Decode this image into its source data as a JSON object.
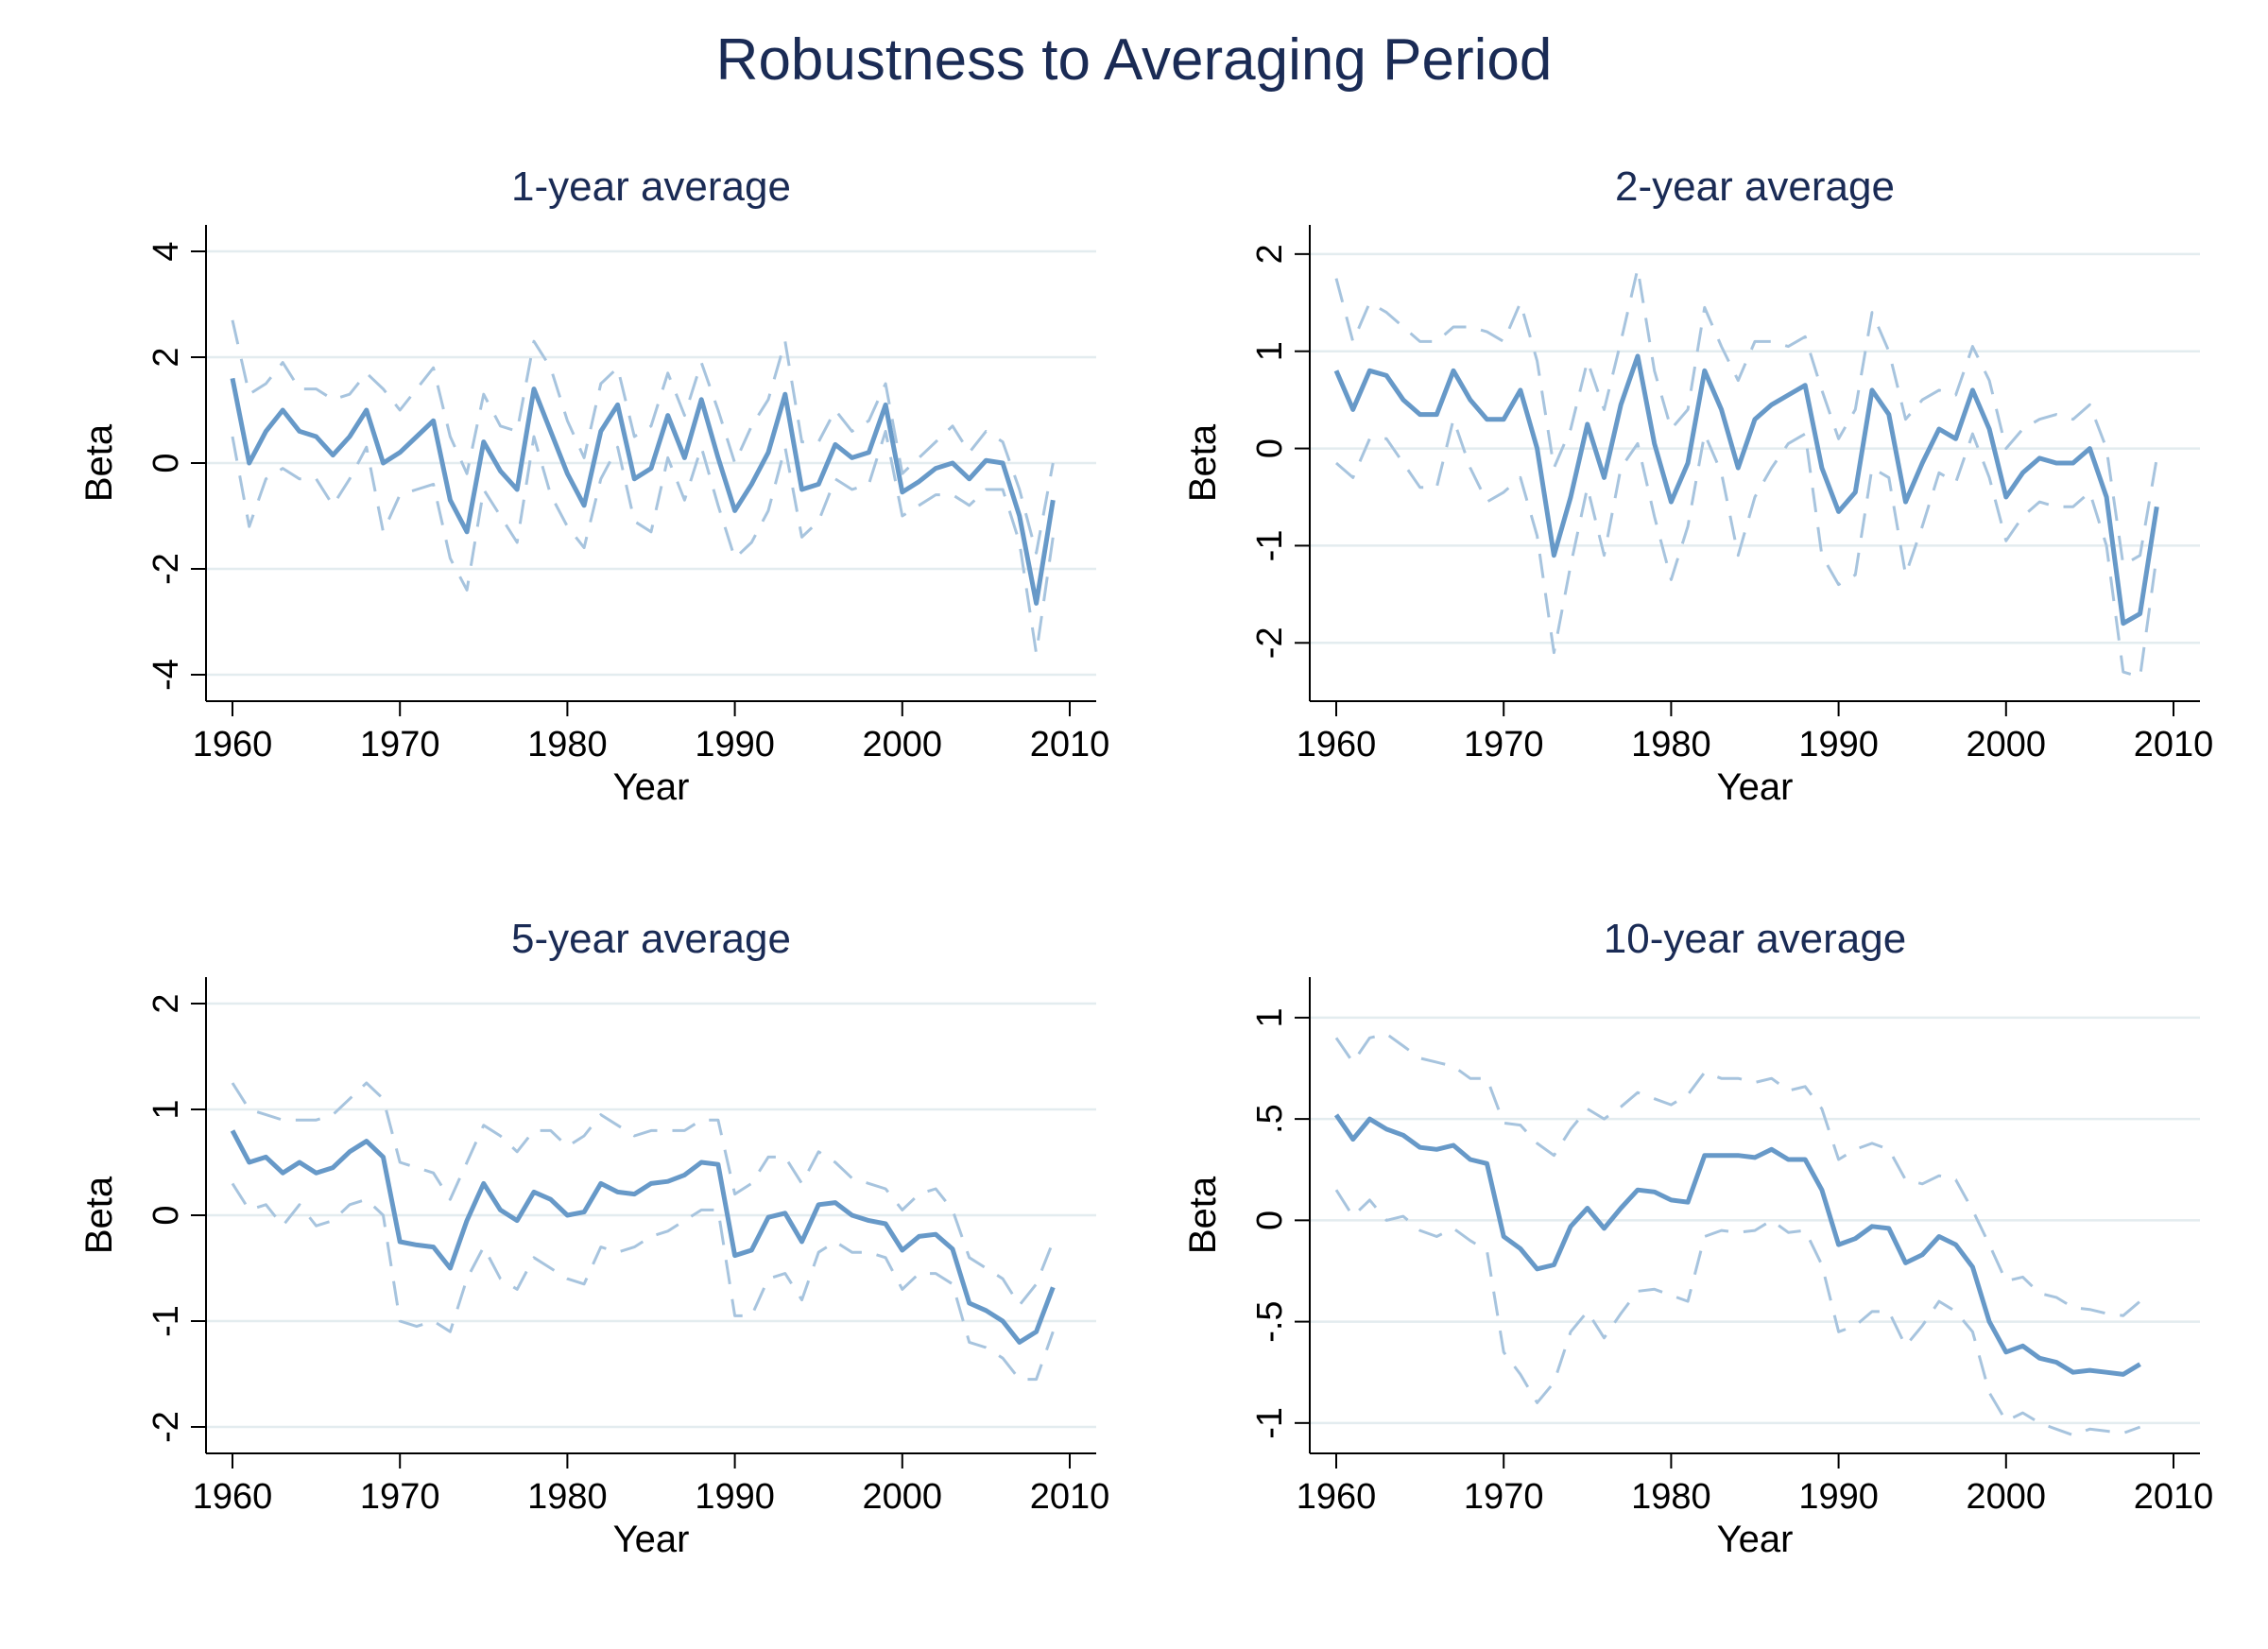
{
  "title": "Robustness to Averaging Period",
  "colors": {
    "estimate": "#6799c8",
    "band": "#a7c4de",
    "grid": "#e3ecef",
    "axis": "#000000",
    "title": "#1a2b55"
  },
  "chart_data": [
    {
      "type": "line",
      "title": "1-year average",
      "xlabel": "Year",
      "ylabel": "Beta",
      "xlim": [
        1960,
        2010
      ],
      "ylim": [
        -4.5,
        4.5
      ],
      "xticks": [
        1960,
        1970,
        1980,
        1990,
        2000,
        2010
      ],
      "xtick_labels": [
        "1960",
        "1970",
        "1980",
        "1990",
        "2000",
        "2010"
      ],
      "yticks": [
        -4,
        -2,
        0,
        2,
        4
      ],
      "ytick_labels": [
        "-4",
        "-2",
        "0",
        "2",
        "4"
      ],
      "grid": true,
      "legend": "none",
      "x": [
        1960,
        1961,
        1962,
        1963,
        1964,
        1965,
        1966,
        1967,
        1968,
        1969,
        1970,
        1971,
        1972,
        1973,
        1974,
        1975,
        1976,
        1977,
        1978,
        1979,
        1980,
        1981,
        1982,
        1983,
        1984,
        1985,
        1986,
        1987,
        1988,
        1989,
        1990,
        1991,
        1992,
        1993,
        1994,
        1995,
        1996,
        1997,
        1998,
        1999,
        2000,
        2001,
        2002,
        2003,
        2004,
        2005,
        2006,
        2007,
        2008,
        2009
      ],
      "series": [
        {
          "role": "estimate",
          "values": [
            1.6,
            0.0,
            0.6,
            1.0,
            0.6,
            0.5,
            0.15,
            0.5,
            1.0,
            0.0,
            0.2,
            0.5,
            0.8,
            -0.7,
            -1.3,
            0.4,
            -0.15,
            -0.5,
            1.4,
            0.6,
            -0.2,
            -0.8,
            0.6,
            1.1,
            -0.3,
            -0.1,
            0.9,
            0.1,
            1.2,
            0.1,
            -0.9,
            -0.4,
            0.2,
            1.3,
            -0.5,
            -0.4,
            0.35,
            0.1,
            0.2,
            1.1,
            -0.55,
            -0.35,
            -0.1,
            0.0,
            -0.3,
            0.05,
            0.0,
            -1.0,
            -2.65,
            -0.7
          ]
        },
        {
          "role": "upper",
          "values": [
            2.7,
            1.3,
            1.5,
            1.9,
            1.4,
            1.4,
            1.2,
            1.3,
            1.7,
            1.4,
            1.0,
            1.4,
            1.8,
            0.5,
            -0.2,
            1.3,
            0.7,
            0.6,
            2.3,
            1.8,
            0.8,
            0.1,
            1.5,
            1.8,
            0.5,
            0.7,
            1.7,
            0.9,
            1.9,
            1.0,
            0.0,
            0.7,
            1.2,
            2.3,
            0.4,
            0.4,
            1.0,
            0.6,
            0.8,
            1.5,
            -0.2,
            0.1,
            0.4,
            0.7,
            0.2,
            0.6,
            0.4,
            -0.5,
            -1.7,
            0.0
          ]
        },
        {
          "role": "lower",
          "values": [
            0.5,
            -1.2,
            -0.3,
            -0.1,
            -0.3,
            -0.3,
            -0.8,
            -0.3,
            0.3,
            -1.3,
            -0.6,
            -0.5,
            -0.4,
            -1.8,
            -2.4,
            -0.5,
            -1.0,
            -1.5,
            0.5,
            -0.6,
            -1.2,
            -1.6,
            -0.3,
            0.3,
            -1.1,
            -1.3,
            0.1,
            -0.7,
            0.3,
            -0.8,
            -1.8,
            -1.5,
            -0.9,
            0.3,
            -1.4,
            -1.1,
            -0.3,
            -0.5,
            -0.4,
            0.6,
            -1.0,
            -0.8,
            -0.6,
            -0.6,
            -0.8,
            -0.5,
            -0.5,
            -1.5,
            -3.6,
            -1.4
          ]
        }
      ]
    },
    {
      "type": "line",
      "title": "2-year average",
      "xlabel": "Year",
      "ylabel": "Beta",
      "xlim": [
        1960,
        2010
      ],
      "ylim": [
        -2.6,
        2.3
      ],
      "xticks": [
        1960,
        1970,
        1980,
        1990,
        2000,
        2010
      ],
      "xtick_labels": [
        "1960",
        "1970",
        "1980",
        "1990",
        "2000",
        "2010"
      ],
      "yticks": [
        -2,
        -1,
        0,
        1,
        2
      ],
      "ytick_labels": [
        "-2",
        "-1",
        "0",
        "1",
        "2"
      ],
      "grid": true,
      "legend": "none",
      "x": [
        1960,
        1961,
        1962,
        1963,
        1964,
        1965,
        1966,
        1967,
        1968,
        1969,
        1970,
        1971,
        1972,
        1973,
        1974,
        1975,
        1976,
        1977,
        1978,
        1979,
        1980,
        1981,
        1982,
        1983,
        1984,
        1985,
        1986,
        1987,
        1988,
        1989,
        1990,
        1991,
        1992,
        1993,
        1994,
        1995,
        1996,
        1997,
        1998,
        1999,
        2000,
        2001,
        2002,
        2003,
        2004,
        2005,
        2006,
        2007,
        2008,
        2009
      ],
      "series": [
        {
          "role": "estimate",
          "values": [
            0.8,
            0.4,
            0.8,
            0.75,
            0.5,
            0.35,
            0.35,
            0.8,
            0.5,
            0.3,
            0.3,
            0.6,
            0.0,
            -1.1,
            -0.5,
            0.25,
            -0.3,
            0.45,
            0.95,
            0.05,
            -0.55,
            -0.15,
            0.8,
            0.4,
            -0.2,
            0.3,
            0.45,
            0.55,
            0.65,
            -0.2,
            -0.65,
            -0.45,
            0.6,
            0.35,
            -0.55,
            -0.15,
            0.2,
            0.1,
            0.6,
            0.2,
            -0.5,
            -0.25,
            -0.1,
            -0.15,
            -0.15,
            0.0,
            -0.5,
            -1.8,
            -1.7,
            -0.6
          ]
        },
        {
          "role": "upper",
          "values": [
            1.75,
            1.1,
            1.5,
            1.4,
            1.25,
            1.1,
            1.1,
            1.25,
            1.25,
            1.2,
            1.1,
            1.5,
            0.9,
            -0.2,
            0.2,
            0.9,
            0.4,
            1.1,
            1.85,
            0.8,
            0.2,
            0.4,
            1.45,
            1.05,
            0.7,
            1.1,
            1.1,
            1.05,
            1.15,
            0.6,
            0.1,
            0.4,
            1.4,
            1.0,
            0.3,
            0.5,
            0.6,
            0.55,
            1.05,
            0.7,
            0.0,
            0.2,
            0.3,
            0.35,
            0.3,
            0.45,
            0.0,
            -1.2,
            -1.1,
            -0.1
          ]
        },
        {
          "role": "lower",
          "values": [
            -0.15,
            -0.3,
            0.1,
            0.1,
            -0.15,
            -0.4,
            -0.4,
            0.3,
            -0.2,
            -0.55,
            -0.45,
            -0.3,
            -0.9,
            -2.1,
            -1.2,
            -0.4,
            -1.1,
            -0.2,
            0.05,
            -0.7,
            -1.35,
            -0.8,
            0.15,
            -0.25,
            -1.1,
            -0.5,
            -0.2,
            0.05,
            0.15,
            -1.1,
            -1.4,
            -1.3,
            -0.2,
            -0.3,
            -1.3,
            -0.8,
            -0.25,
            -0.35,
            0.15,
            -0.3,
            -0.95,
            -0.7,
            -0.55,
            -0.6,
            -0.6,
            -0.45,
            -1.0,
            -2.3,
            -2.35,
            -1.1
          ]
        }
      ]
    },
    {
      "type": "line",
      "title": "5-year average",
      "xlabel": "Year",
      "ylabel": "Beta",
      "xlim": [
        1960,
        2010
      ],
      "ylim": [
        -2.25,
        2.25
      ],
      "xticks": [
        1960,
        1970,
        1980,
        1990,
        2000,
        2010
      ],
      "xtick_labels": [
        "1960",
        "1970",
        "1980",
        "1990",
        "2000",
        "2010"
      ],
      "yticks": [
        -2,
        -1,
        0,
        1,
        2
      ],
      "ytick_labels": [
        "-2",
        "-1",
        "0",
        "1",
        "2"
      ],
      "grid": true,
      "legend": "none",
      "x": [
        1960,
        1961,
        1962,
        1963,
        1964,
        1965,
        1966,
        1967,
        1968,
        1969,
        1970,
        1971,
        1972,
        1973,
        1974,
        1975,
        1976,
        1977,
        1978,
        1979,
        1980,
        1981,
        1982,
        1983,
        1984,
        1985,
        1986,
        1987,
        1988,
        1989,
        1990,
        1991,
        1992,
        1993,
        1994,
        1995,
        1996,
        1997,
        1998,
        1999,
        2000,
        2001,
        2002,
        2003,
        2004,
        2005,
        2006,
        2007,
        2008,
        2009
      ],
      "series": [
        {
          "role": "estimate",
          "values": [
            0.8,
            0.5,
            0.55,
            0.4,
            0.5,
            0.4,
            0.45,
            0.6,
            0.7,
            0.55,
            -0.25,
            -0.28,
            -0.3,
            -0.5,
            -0.05,
            0.3,
            0.05,
            -0.05,
            0.22,
            0.15,
            0.0,
            0.03,
            0.3,
            0.22,
            0.2,
            0.3,
            0.32,
            0.38,
            0.5,
            0.48,
            -0.38,
            -0.33,
            -0.02,
            0.02,
            -0.25,
            0.1,
            0.12,
            0.0,
            -0.05,
            -0.08,
            -0.33,
            -0.2,
            -0.18,
            -0.32,
            -0.83,
            -0.9,
            -1.0,
            -1.2,
            -1.1,
            -0.68
          ]
        },
        {
          "role": "upper",
          "values": [
            1.25,
            1.0,
            0.95,
            0.9,
            0.9,
            0.9,
            0.95,
            1.1,
            1.25,
            1.1,
            0.5,
            0.45,
            0.4,
            0.15,
            0.5,
            0.85,
            0.75,
            0.6,
            0.8,
            0.8,
            0.65,
            0.75,
            0.95,
            0.85,
            0.75,
            0.8,
            0.8,
            0.8,
            0.9,
            0.9,
            0.2,
            0.3,
            0.55,
            0.55,
            0.3,
            0.6,
            0.5,
            0.35,
            0.3,
            0.25,
            0.05,
            0.2,
            0.25,
            0.05,
            -0.4,
            -0.5,
            -0.6,
            -0.85,
            -0.65,
            -0.25
          ]
        },
        {
          "role": "lower",
          "values": [
            0.3,
            0.05,
            0.1,
            -0.1,
            0.1,
            -0.1,
            -0.05,
            0.1,
            0.15,
            0.0,
            -1.0,
            -1.05,
            -1.0,
            -1.1,
            -0.6,
            -0.3,
            -0.6,
            -0.7,
            -0.4,
            -0.5,
            -0.6,
            -0.65,
            -0.3,
            -0.35,
            -0.3,
            -0.2,
            -0.15,
            -0.05,
            0.05,
            0.05,
            -0.95,
            -0.95,
            -0.6,
            -0.55,
            -0.8,
            -0.35,
            -0.25,
            -0.35,
            -0.35,
            -0.4,
            -0.7,
            -0.55,
            -0.55,
            -0.65,
            -1.2,
            -1.25,
            -1.35,
            -1.55,
            -1.55,
            -1.1
          ]
        }
      ]
    },
    {
      "type": "line",
      "title": "10-year average",
      "xlabel": "Year",
      "ylabel": "Beta",
      "xlim": [
        1960,
        2010
      ],
      "ylim": [
        -1.15,
        1.2
      ],
      "xticks": [
        1960,
        1970,
        1980,
        1990,
        2000,
        2010
      ],
      "xtick_labels": [
        "1960",
        "1970",
        "1980",
        "1990",
        "2000",
        "2010"
      ],
      "yticks": [
        -1,
        -0.5,
        0,
        0.5,
        1
      ],
      "ytick_labels": [
        "-1",
        "-.5",
        "0",
        ".5",
        "1"
      ],
      "grid": true,
      "legend": "none",
      "x": [
        1960,
        1961,
        1962,
        1963,
        1964,
        1965,
        1966,
        1967,
        1968,
        1969,
        1970,
        1971,
        1972,
        1973,
        1974,
        1975,
        1976,
        1977,
        1978,
        1979,
        1980,
        1981,
        1982,
        1983,
        1984,
        1985,
        1986,
        1987,
        1988,
        1989,
        1990,
        1991,
        1992,
        1993,
        1994,
        1995,
        1996,
        1997,
        1998,
        1999,
        2000,
        2001,
        2002,
        2003,
        2004,
        2005,
        2006,
        2007,
        2008
      ],
      "series": [
        {
          "role": "estimate",
          "values": [
            0.52,
            0.4,
            0.5,
            0.45,
            0.42,
            0.36,
            0.35,
            0.37,
            0.3,
            0.28,
            -0.08,
            -0.14,
            -0.24,
            -0.22,
            -0.03,
            0.06,
            -0.04,
            0.06,
            0.15,
            0.14,
            0.1,
            0.09,
            0.32,
            0.32,
            0.32,
            0.31,
            0.35,
            0.3,
            0.3,
            0.15,
            -0.12,
            -0.09,
            -0.03,
            -0.04,
            -0.21,
            -0.17,
            -0.08,
            -0.12,
            -0.23,
            -0.5,
            -0.65,
            -0.62,
            -0.68,
            -0.7,
            -0.75,
            -0.74,
            -0.75,
            -0.76,
            -0.71
          ]
        },
        {
          "role": "upper",
          "values": [
            0.9,
            0.78,
            0.9,
            0.92,
            0.86,
            0.8,
            0.78,
            0.76,
            0.7,
            0.7,
            0.48,
            0.47,
            0.38,
            0.32,
            0.45,
            0.55,
            0.5,
            0.56,
            0.63,
            0.6,
            0.57,
            0.62,
            0.73,
            0.7,
            0.7,
            0.68,
            0.7,
            0.64,
            0.66,
            0.55,
            0.3,
            0.35,
            0.38,
            0.35,
            0.2,
            0.18,
            0.22,
            0.2,
            0.05,
            -0.12,
            -0.3,
            -0.28,
            -0.36,
            -0.38,
            -0.43,
            -0.44,
            -0.46,
            -0.47,
            -0.4
          ]
        },
        {
          "role": "lower",
          "values": [
            0.15,
            0.02,
            0.1,
            0.0,
            0.02,
            -0.05,
            -0.08,
            -0.04,
            -0.1,
            -0.15,
            -0.65,
            -0.76,
            -0.9,
            -0.8,
            -0.55,
            -0.45,
            -0.58,
            -0.46,
            -0.35,
            -0.34,
            -0.37,
            -0.4,
            -0.08,
            -0.05,
            -0.06,
            -0.05,
            0.0,
            -0.06,
            -0.05,
            -0.22,
            -0.55,
            -0.52,
            -0.45,
            -0.45,
            -0.62,
            -0.52,
            -0.4,
            -0.45,
            -0.55,
            -0.85,
            -0.99,
            -0.95,
            -1.0,
            -1.03,
            -1.06,
            -1.03,
            -1.04,
            -1.05,
            -1.02
          ]
        }
      ]
    }
  ]
}
